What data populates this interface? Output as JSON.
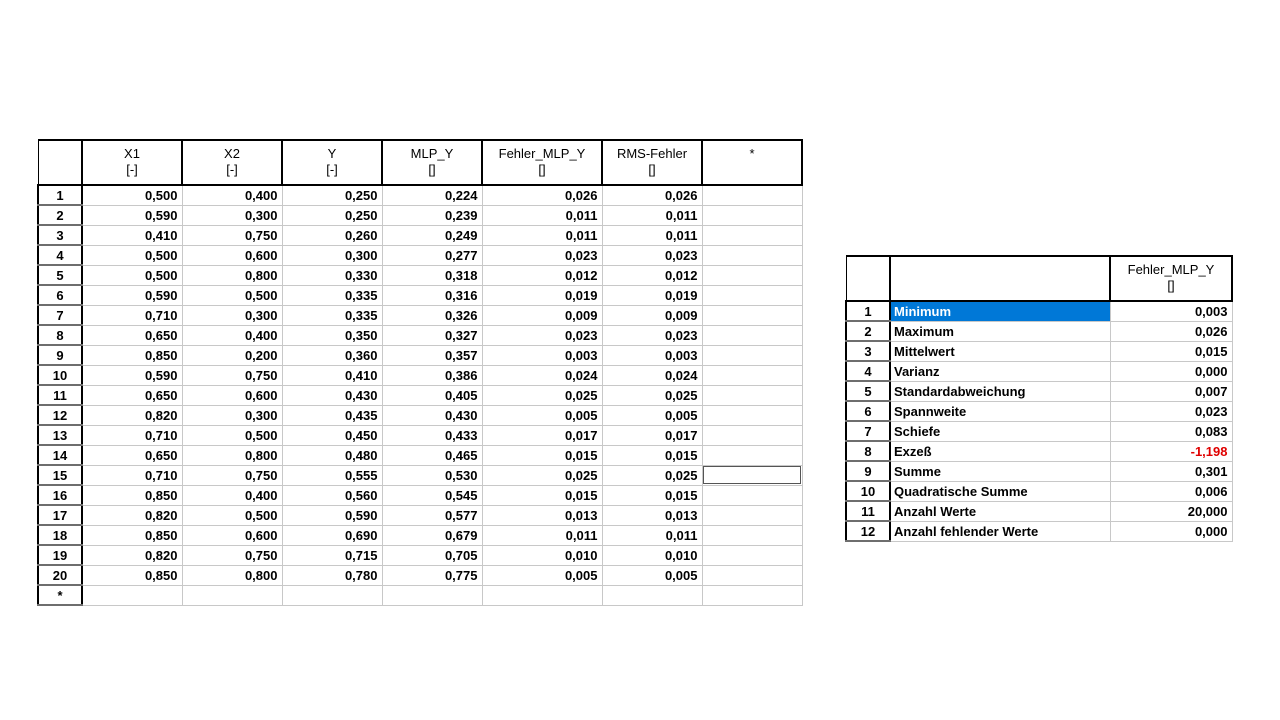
{
  "main_table": {
    "columns": [
      {
        "name": "X1",
        "unit": "[-]"
      },
      {
        "name": "X2",
        "unit": "[-]"
      },
      {
        "name": "Y",
        "unit": "[-]"
      },
      {
        "name": "MLP_Y",
        "unit": "[]"
      },
      {
        "name": "Fehler_MLP_Y",
        "unit": "[]"
      },
      {
        "name": "RMS-Fehler",
        "unit": "[]"
      },
      {
        "name": "*",
        "unit": ""
      }
    ],
    "rows": [
      {
        "num": "1",
        "cells": [
          "0,500",
          "0,400",
          "0,250",
          "0,224",
          "0,026",
          "0,026",
          ""
        ]
      },
      {
        "num": "2",
        "cells": [
          "0,590",
          "0,300",
          "0,250",
          "0,239",
          "0,011",
          "0,011",
          ""
        ]
      },
      {
        "num": "3",
        "cells": [
          "0,410",
          "0,750",
          "0,260",
          "0,249",
          "0,011",
          "0,011",
          ""
        ]
      },
      {
        "num": "4",
        "cells": [
          "0,500",
          "0,600",
          "0,300",
          "0,277",
          "0,023",
          "0,023",
          ""
        ]
      },
      {
        "num": "5",
        "cells": [
          "0,500",
          "0,800",
          "0,330",
          "0,318",
          "0,012",
          "0,012",
          ""
        ]
      },
      {
        "num": "6",
        "cells": [
          "0,590",
          "0,500",
          "0,335",
          "0,316",
          "0,019",
          "0,019",
          ""
        ]
      },
      {
        "num": "7",
        "cells": [
          "0,710",
          "0,300",
          "0,335",
          "0,326",
          "0,009",
          "0,009",
          ""
        ]
      },
      {
        "num": "8",
        "cells": [
          "0,650",
          "0,400",
          "0,350",
          "0,327",
          "0,023",
          "0,023",
          ""
        ]
      },
      {
        "num": "9",
        "cells": [
          "0,850",
          "0,200",
          "0,360",
          "0,357",
          "0,003",
          "0,003",
          ""
        ]
      },
      {
        "num": "10",
        "cells": [
          "0,590",
          "0,750",
          "0,410",
          "0,386",
          "0,024",
          "0,024",
          ""
        ]
      },
      {
        "num": "11",
        "cells": [
          "0,650",
          "0,600",
          "0,430",
          "0,405",
          "0,025",
          "0,025",
          ""
        ]
      },
      {
        "num": "12",
        "cells": [
          "0,820",
          "0,300",
          "0,435",
          "0,430",
          "0,005",
          "0,005",
          ""
        ]
      },
      {
        "num": "13",
        "cells": [
          "0,710",
          "0,500",
          "0,450",
          "0,433",
          "0,017",
          "0,017",
          ""
        ]
      },
      {
        "num": "14",
        "cells": [
          "0,650",
          "0,800",
          "0,480",
          "0,465",
          "0,015",
          "0,015",
          ""
        ]
      },
      {
        "num": "15",
        "cells": [
          "0,710",
          "0,750",
          "0,555",
          "0,530",
          "0,025",
          "0,025",
          ""
        ]
      },
      {
        "num": "16",
        "cells": [
          "0,850",
          "0,400",
          "0,560",
          "0,545",
          "0,015",
          "0,015",
          ""
        ]
      },
      {
        "num": "17",
        "cells": [
          "0,820",
          "0,500",
          "0,590",
          "0,577",
          "0,013",
          "0,013",
          ""
        ]
      },
      {
        "num": "18",
        "cells": [
          "0,850",
          "0,600",
          "0,690",
          "0,679",
          "0,011",
          "0,011",
          ""
        ]
      },
      {
        "num": "19",
        "cells": [
          "0,820",
          "0,750",
          "0,715",
          "0,705",
          "0,010",
          "0,010",
          ""
        ]
      },
      {
        "num": "20",
        "cells": [
          "0,850",
          "0,800",
          "0,780",
          "0,775",
          "0,005",
          "0,005",
          ""
        ]
      },
      {
        "num": "*",
        "cells": [
          "",
          "",
          "",
          "",
          "",
          "",
          ""
        ]
      }
    ],
    "active_cell": {
      "row": "15",
      "column": "*"
    }
  },
  "stats_table": {
    "column": {
      "name": "Fehler_MLP_Y",
      "unit": "[]"
    },
    "rows": [
      {
        "num": "1",
        "label": "Minimum",
        "value": "0,003",
        "selected": true
      },
      {
        "num": "2",
        "label": "Maximum",
        "value": "0,026"
      },
      {
        "num": "3",
        "label": "Mittelwert",
        "value": "0,015"
      },
      {
        "num": "4",
        "label": "Varianz",
        "value": "0,000"
      },
      {
        "num": "5",
        "label": "Standardabweichung",
        "value": "0,007"
      },
      {
        "num": "6",
        "label": "Spannweite",
        "value": "0,023"
      },
      {
        "num": "7",
        "label": "Schiefe",
        "value": "0,083"
      },
      {
        "num": "8",
        "label": "Exzeß",
        "value": "-1,198",
        "negative": true
      },
      {
        "num": "9",
        "label": "Summe",
        "value": "0,301"
      },
      {
        "num": "10",
        "label": "Quadratische Summe",
        "value": "0,006"
      },
      {
        "num": "11",
        "label": "Anzahl Werte",
        "value": "20,000"
      },
      {
        "num": "12",
        "label": "Anzahl fehlender Werte",
        "value": "0,000"
      }
    ],
    "colors": {
      "selection": "#0078d7",
      "negative_value": "#e00000"
    }
  }
}
